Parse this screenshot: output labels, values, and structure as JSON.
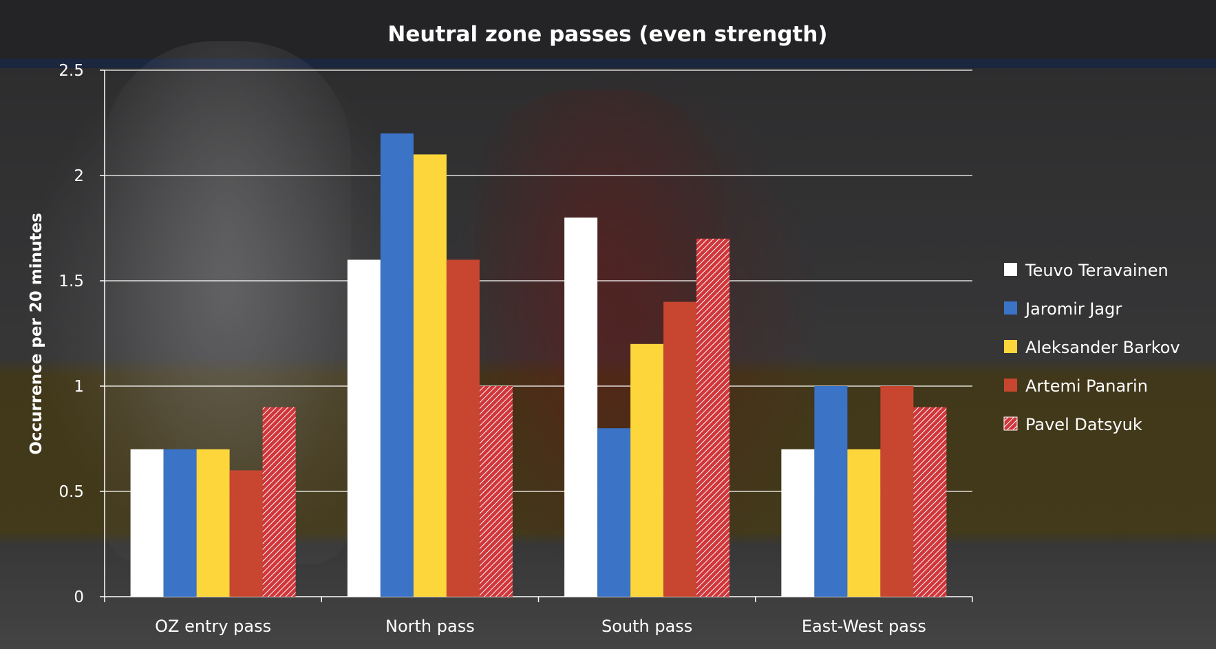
{
  "chart_data": {
    "type": "bar",
    "title": "Neutral zone passes (even strength)",
    "xlabel": "",
    "ylabel": "Occurrence per 20 minutes",
    "ylim": [
      0,
      2.5
    ],
    "yticks": [
      0,
      0.5,
      1,
      1.5,
      2,
      2.5
    ],
    "ytick_labels": [
      "0",
      "0.5",
      "1",
      "1.5",
      "2",
      "2.5"
    ],
    "grid": true,
    "legend_position": "right",
    "categories": [
      "OZ entry pass",
      "North pass",
      "South pass",
      "East-West pass"
    ],
    "series": [
      {
        "name": "Teuvo Teravainen",
        "values": [
          0.7,
          1.6,
          1.8,
          0.7
        ],
        "color": "#ffffff",
        "pattern": "solid"
      },
      {
        "name": "Jaromir Jagr",
        "values": [
          0.7,
          2.2,
          0.8,
          1.0
        ],
        "color": "#3b73c6",
        "pattern": "solid"
      },
      {
        "name": "Aleksander Barkov",
        "values": [
          0.7,
          2.1,
          1.2,
          0.7
        ],
        "color": "#fdd63b",
        "pattern": "solid"
      },
      {
        "name": "Artemi Panarin",
        "values": [
          0.6,
          1.6,
          1.4,
          1.0
        ],
        "color": "#c84630",
        "pattern": "solid"
      },
      {
        "name": "Pavel Datsyuk",
        "values": [
          0.9,
          1.0,
          1.7,
          0.9
        ],
        "color": "#d0363a",
        "pattern": "hatched"
      }
    ]
  },
  "colors": {
    "text": "#ffffff",
    "gridline": "#ffffff",
    "hatch_line": "#ffffff"
  }
}
